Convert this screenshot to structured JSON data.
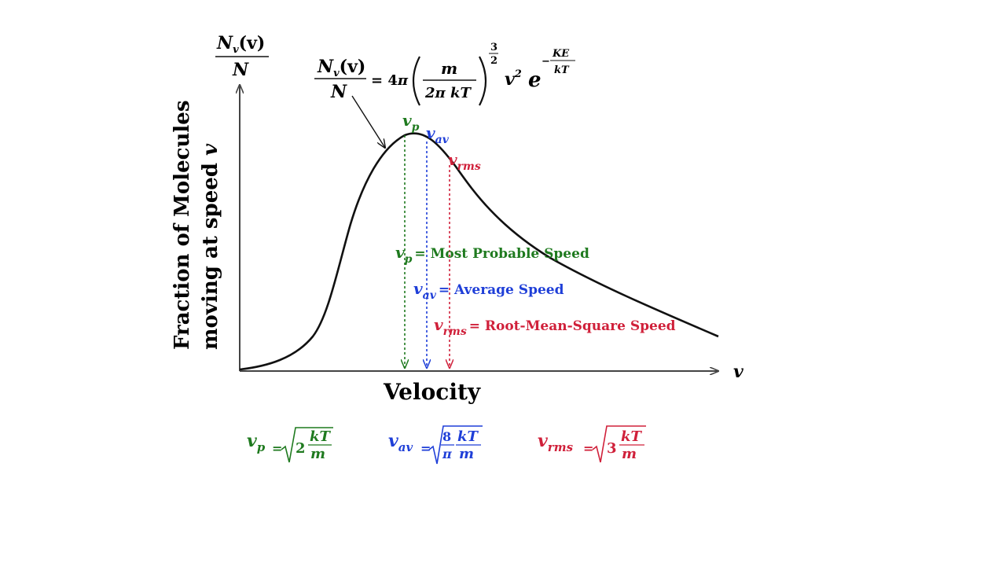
{
  "colors": {
    "curve": "#111111",
    "axis": "#444444",
    "most_probable": "#1f7a1f",
    "average": "#1f3fd8",
    "rms": "#d0203a"
  },
  "y_axis": {
    "fraction_top": "N",
    "fraction_sub": "v",
    "fraction_tail": "(v)",
    "fraction_bottom": "N",
    "label_line1": "Fraction of Molecules",
    "label_line2": "moving at speed",
    "label_var": "v"
  },
  "x_axis": {
    "label": "Velocity",
    "var": "v"
  },
  "formula": {
    "lhs_top": "N",
    "lhs_sub": "v",
    "lhs_tail": "(v)",
    "lhs_bottom": "N",
    "equals": "= 4",
    "pi": "π",
    "m": "m",
    "two_pi_kT": "2π kT",
    "exp_num": "3",
    "exp_den": "2",
    "v2": "v",
    "v2_exp": "2",
    "e": "e",
    "e_exp_sign": "−",
    "e_exp_num": "KE",
    "e_exp_den": "kT"
  },
  "markers": {
    "vp": {
      "base": "v",
      "sub": "p"
    },
    "vav": {
      "base": "v",
      "sub": "av"
    },
    "vrms": {
      "base": "v",
      "sub": "rms"
    }
  },
  "legend": {
    "vp_text": "= Most Probable Speed",
    "vav_text": "= Average Speed",
    "vrms_text": "= Root-Mean-Square Speed"
  },
  "bottom_formulas": {
    "vp": {
      "eq": "=",
      "coef": "2",
      "num": "kT",
      "den": "m"
    },
    "vav": {
      "eq": "=",
      "coef_num": "8",
      "coef_den": "π",
      "num": "kT",
      "den": "m"
    },
    "vrms": {
      "eq": "=",
      "coef": "3",
      "num": "kT",
      "den": "m"
    }
  }
}
